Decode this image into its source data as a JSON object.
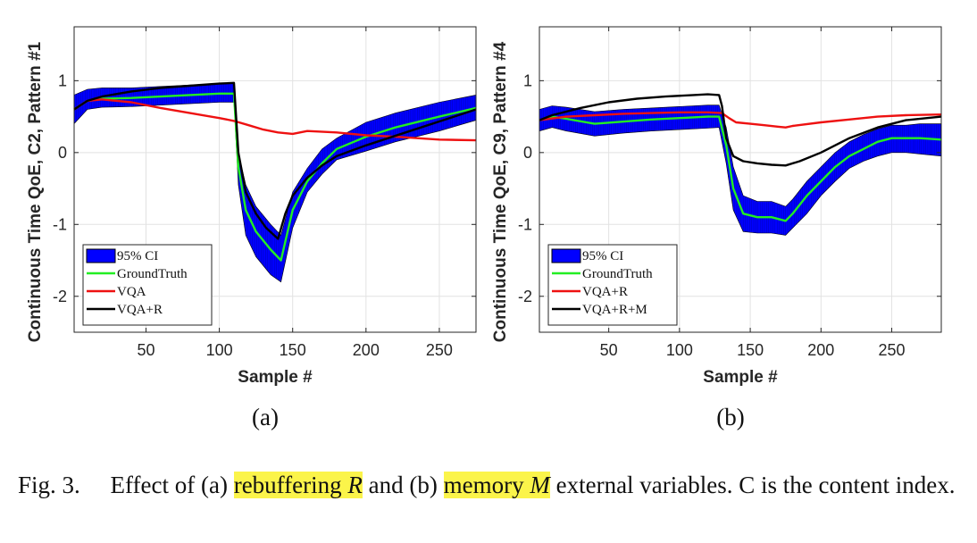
{
  "caption": {
    "prefix": "Fig. 3.",
    "text_a": "Effect of (a)",
    "hl_a_word": "rebuffering",
    "hl_a_var": "R",
    "mid": "and (b)",
    "hl_b_word": "memory",
    "hl_b_var": "M",
    "rest": "external variables. C is the content index."
  },
  "colors": {
    "ci": "#0000ff",
    "gt": "#22ee22",
    "vqa": "#ee1111",
    "vqar": "#000000",
    "highlight": "#fbf44a"
  },
  "chart_data": [
    {
      "type": "line",
      "panel_label": "(a)",
      "xlabel": "Sample #",
      "ylabel": "Continuous Time QoE, C2, Pattern #1",
      "xlim": [
        1,
        275
      ],
      "ylim": [
        -2.5,
        1.75
      ],
      "xticks": [
        50,
        100,
        150,
        200,
        250
      ],
      "yticks": [
        1,
        0,
        -1,
        -2
      ],
      "grid": true,
      "legend_position": "bottom-left",
      "legend": [
        "95% CI",
        "GroundTruth",
        "VQA",
        "VQA+R"
      ],
      "series": [
        {
          "name": "GroundTruth",
          "x": [
            1,
            10,
            20,
            40,
            60,
            80,
            100,
            110,
            113,
            118,
            125,
            135,
            142,
            150,
            160,
            170,
            180,
            200,
            220,
            250,
            275
          ],
          "y": [
            0.6,
            0.72,
            0.75,
            0.76,
            0.78,
            0.8,
            0.82,
            0.82,
            -0.2,
            -0.8,
            -1.1,
            -1.35,
            -1.5,
            -0.8,
            -0.4,
            -0.15,
            0.05,
            0.22,
            0.35,
            0.5,
            0.62
          ]
        },
        {
          "name": "VQA",
          "x": [
            1,
            10,
            20,
            40,
            60,
            80,
            100,
            110,
            120,
            130,
            140,
            150,
            160,
            180,
            200,
            220,
            250,
            275
          ],
          "y": [
            0.6,
            0.72,
            0.74,
            0.7,
            0.62,
            0.55,
            0.48,
            0.44,
            0.38,
            0.32,
            0.28,
            0.26,
            0.3,
            0.28,
            0.24,
            0.22,
            0.18,
            0.17
          ]
        },
        {
          "name": "VQA+R",
          "x": [
            1,
            10,
            20,
            40,
            60,
            80,
            100,
            110,
            113,
            118,
            125,
            132,
            140,
            145,
            150,
            160,
            170,
            180,
            200,
            230,
            260,
            275
          ],
          "y": [
            0.6,
            0.72,
            0.78,
            0.85,
            0.9,
            0.93,
            0.96,
            0.97,
            0.0,
            -0.55,
            -0.85,
            -1.05,
            -1.2,
            -0.85,
            -0.6,
            -0.35,
            -0.18,
            -0.05,
            0.1,
            0.3,
            0.5,
            0.6
          ]
        },
        {
          "name": "95% CI",
          "x": [
            1,
            10,
            20,
            40,
            60,
            80,
            100,
            110,
            113,
            118,
            125,
            135,
            142,
            150,
            160,
            170,
            180,
            200,
            220,
            250,
            275
          ],
          "lower": [
            0.4,
            0.6,
            0.63,
            0.64,
            0.66,
            0.68,
            0.7,
            0.7,
            -0.45,
            -1.15,
            -1.45,
            -1.7,
            -1.8,
            -1.05,
            -0.55,
            -0.3,
            -0.1,
            0.02,
            0.15,
            0.3,
            0.45
          ],
          "upper": [
            0.8,
            0.88,
            0.9,
            0.9,
            0.92,
            0.94,
            0.96,
            0.97,
            0.0,
            -0.45,
            -0.75,
            -1.0,
            -1.15,
            -0.55,
            -0.22,
            0.05,
            0.2,
            0.42,
            0.55,
            0.7,
            0.8
          ]
        }
      ]
    },
    {
      "type": "line",
      "panel_label": "(b)",
      "xlabel": "Sample #",
      "ylabel": "Continuous Time QoE, C9, Pattern #4",
      "xlim": [
        1,
        285
      ],
      "ylim": [
        -2.5,
        1.75
      ],
      "xticks": [
        50,
        100,
        150,
        200,
        250
      ],
      "yticks": [
        1,
        0,
        -1,
        -2
      ],
      "grid": true,
      "legend_position": "bottom-left",
      "legend": [
        "95% CI",
        "GroundTruth",
        "VQA+R",
        "VQA+R+M"
      ],
      "series": [
        {
          "name": "GroundTruth",
          "x": [
            1,
            10,
            20,
            40,
            60,
            80,
            100,
            120,
            128,
            133,
            138,
            145,
            155,
            165,
            175,
            180,
            190,
            200,
            210,
            220,
            230,
            240,
            250,
            260,
            270,
            285
          ],
          "y": [
            0.45,
            0.5,
            0.47,
            0.4,
            0.43,
            0.46,
            0.48,
            0.5,
            0.5,
            0.1,
            -0.5,
            -0.85,
            -0.9,
            -0.9,
            -0.95,
            -0.85,
            -0.6,
            -0.4,
            -0.2,
            -0.05,
            0.05,
            0.15,
            0.2,
            0.2,
            0.2,
            0.18
          ]
        },
        {
          "name": "VQA+R",
          "x": [
            1,
            20,
            40,
            60,
            80,
            100,
            120,
            130,
            135,
            140,
            150,
            160,
            170,
            175,
            180,
            200,
            220,
            240,
            260,
            285
          ],
          "y": [
            0.45,
            0.5,
            0.52,
            0.54,
            0.55,
            0.56,
            0.56,
            0.55,
            0.48,
            0.42,
            0.4,
            0.38,
            0.36,
            0.35,
            0.37,
            0.42,
            0.46,
            0.5,
            0.52,
            0.53
          ]
        },
        {
          "name": "VQA+R+M",
          "x": [
            1,
            10,
            30,
            50,
            70,
            90,
            110,
            120,
            128,
            130,
            133,
            138,
            145,
            155,
            165,
            175,
            185,
            200,
            220,
            240,
            260,
            285
          ],
          "y": [
            0.45,
            0.52,
            0.62,
            0.7,
            0.75,
            0.78,
            0.8,
            0.81,
            0.8,
            0.65,
            0.2,
            -0.05,
            -0.12,
            -0.15,
            -0.17,
            -0.18,
            -0.12,
            0.0,
            0.2,
            0.35,
            0.45,
            0.5
          ]
        },
        {
          "name": "95% CI",
          "x": [
            1,
            10,
            20,
            40,
            60,
            80,
            100,
            120,
            128,
            133,
            138,
            145,
            155,
            165,
            175,
            180,
            190,
            200,
            210,
            220,
            230,
            240,
            250,
            260,
            270,
            285
          ],
          "lower": [
            0.3,
            0.35,
            0.3,
            0.23,
            0.27,
            0.3,
            0.32,
            0.34,
            0.35,
            -0.15,
            -0.8,
            -1.1,
            -1.12,
            -1.12,
            -1.15,
            -1.05,
            -0.85,
            -0.6,
            -0.4,
            -0.22,
            -0.12,
            -0.05,
            0.0,
            0.0,
            -0.02,
            -0.05
          ]
        },
        {
          "name": "95% CI",
          "x": [
            1,
            10,
            20,
            40,
            60,
            80,
            100,
            120,
            128,
            133,
            138,
            145,
            155,
            165,
            175,
            180,
            190,
            200,
            210,
            220,
            230,
            240,
            250,
            260,
            270,
            285
          ],
          "upper": [
            0.6,
            0.65,
            0.63,
            0.57,
            0.6,
            0.62,
            0.64,
            0.66,
            0.66,
            0.35,
            -0.2,
            -0.6,
            -0.68,
            -0.68,
            -0.75,
            -0.65,
            -0.4,
            -0.2,
            0.0,
            0.15,
            0.25,
            0.33,
            0.38,
            0.38,
            0.4,
            0.4
          ]
        }
      ]
    }
  ]
}
